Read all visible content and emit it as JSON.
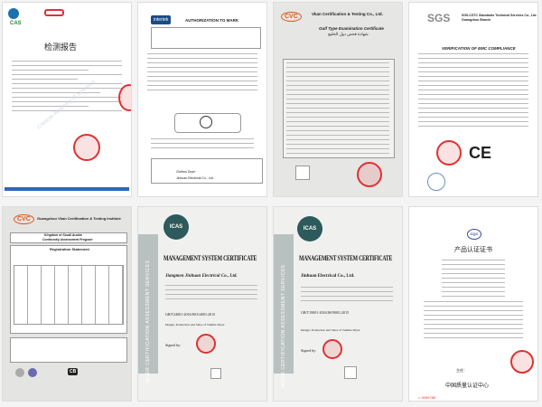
{
  "certificates": [
    {
      "title": "检测报告",
      "logo_text": "CAS",
      "watermark": "Chinese Academy of Sciences"
    },
    {
      "title": "AUTHORIZATION TO MARK",
      "logo_text": "intertek",
      "brand": "Jinhuan Electrical Co., Ltd.",
      "product": "Clothes Dryer"
    },
    {
      "issuer": "Vkan Certification & Testing Co., Ltd.",
      "logo_text": "CVC",
      "title": "Gulf Type Examination Certificate",
      "title_ar": "شهادة فحص دول الخليج"
    },
    {
      "logo_text": "SGS",
      "issuer": "SGS-CSTC Standards Technical Services Co., Ltd.",
      "branch": "Guangzhou Branch",
      "title": "VERIFICATION OF EMC COMPLIANCE",
      "mark": "CE"
    },
    {
      "logo_text": "CVC",
      "issuer": "Guangzhou Vkan Certification & Testing Institute",
      "program_line1": "Kingdom of Saudi Arabia",
      "program_line2": "Conformity Assessment Program",
      "title": "Registration Statement",
      "mark": "CB"
    },
    {
      "logo_text": "ICAS",
      "side_text": "INGER CERTIFICATION ASSESSMENT SERVICES",
      "title": "MANAGEMENT SYSTEM CERTIFICATE",
      "company": "Jiangmen Jinhuan Electrical Co., Ltd.",
      "standard": "GB/T24001-2016/ISO14001:2015",
      "scope": "Design, Production and Sales of Tumble Dryer",
      "signed": "Signed by:"
    },
    {
      "logo_text": "ICAS",
      "side_text": "INGER CERTIFICATION ASSESSMENT SERVICES",
      "title": "MANAGEMENT SYSTEM CERTIFICATE",
      "company": "Jinhuan Electrical Co., Ltd.",
      "standard": "GB/T19001-2016/ISO9001:2015",
      "scope": "Design, Production and Sales of Tumble Dryer",
      "signed": "Signed by:"
    },
    {
      "logo_text": "CQC",
      "title": "产品认证证书",
      "issuer": "中国质量认证中心",
      "serial": "< 0090785",
      "sign_label": "主任："
    }
  ]
}
